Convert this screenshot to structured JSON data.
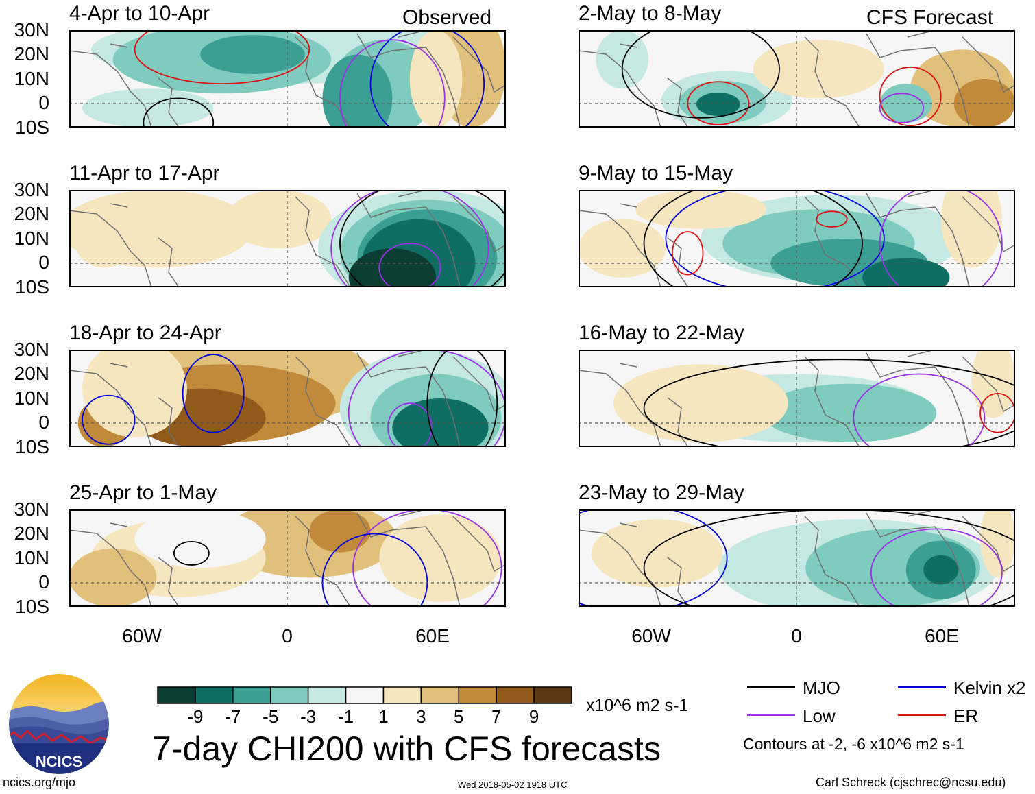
{
  "header": {
    "observed": "Observed",
    "forecast": "CFS Forecast"
  },
  "lat_labels": [
    "30N",
    "20N",
    "10N",
    "0",
    "10S"
  ],
  "lon_labels": [
    "60W",
    "0",
    "60E"
  ],
  "panels": [
    {
      "title": "4-Apr to 10-Apr",
      "col": 0,
      "row": 0,
      "style": "obs1"
    },
    {
      "title": "11-Apr to 17-Apr",
      "col": 0,
      "row": 1,
      "style": "obs2"
    },
    {
      "title": "18-Apr to 24-Apr",
      "col": 0,
      "row": 2,
      "style": "obs3"
    },
    {
      "title": "25-Apr to 1-May",
      "col": 0,
      "row": 3,
      "style": "obs4"
    },
    {
      "title": "2-May to 8-May",
      "col": 1,
      "row": 0,
      "style": "fc1"
    },
    {
      "title": "9-May to 15-May",
      "col": 1,
      "row": 1,
      "style": "fc2"
    },
    {
      "title": "16-May to 22-May",
      "col": 1,
      "row": 2,
      "style": "fc3"
    },
    {
      "title": "23-May to 29-May",
      "col": 1,
      "row": 3,
      "style": "fc4"
    }
  ],
  "colorbar": {
    "colors": [
      "#0c3d33",
      "#0e6e64",
      "#3b9f94",
      "#7fcbbd",
      "#c5e9e2",
      "#f6f6f6",
      "#f6e6c0",
      "#e0c07a",
      "#c08a3a",
      "#8f5a1a",
      "#5a3a12"
    ],
    "labels": [
      "-9",
      "-7",
      "-5",
      "-3",
      "-1",
      "1",
      "3",
      "5",
      "7",
      "9"
    ],
    "units": "x10^6 m2 s-1"
  },
  "main_title": "7-day CHI200 with CFS forecasts",
  "legend": {
    "items": [
      {
        "label": "MJO",
        "color": "#000000"
      },
      {
        "label": "Kelvin x2",
        "color": "#0000e0"
      },
      {
        "label": "Low",
        "color": "#9a30e8"
      },
      {
        "label": "ER",
        "color": "#e01010"
      }
    ],
    "note": "Contours at -2, -6 x10^6 m2 s-1"
  },
  "logo_text": "NCICS",
  "footer": {
    "url": "ncics.org/mjo",
    "timestamp": "Wed 2018-05-02 1918 UTC",
    "author": "Carl Schreck (cjschrec@ncsu.edu)"
  }
}
